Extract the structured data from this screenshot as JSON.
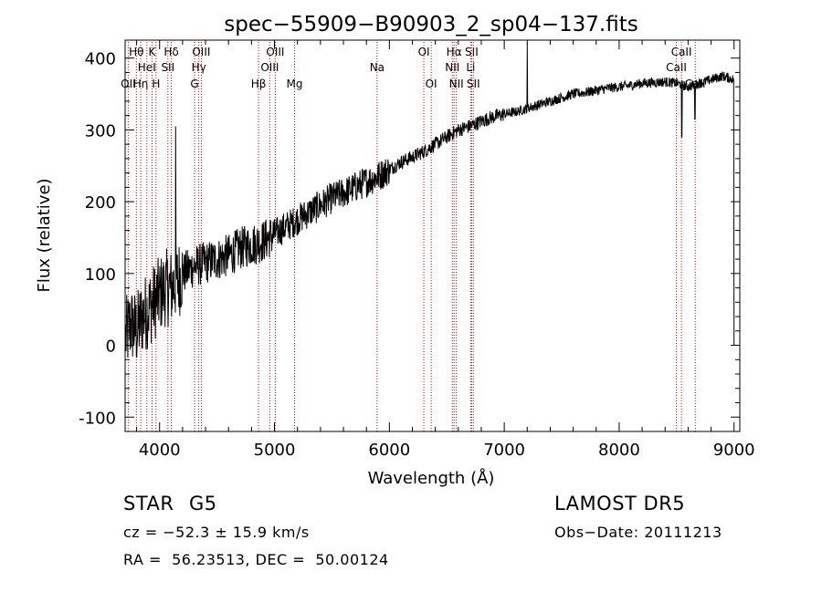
{
  "chart_data": {
    "type": "line",
    "title": "spec−55909−B90903_2_sp04−137.fits",
    "xlabel": "Wavelength (Å)",
    "ylabel": "Flux (relative)",
    "xlim": [
      3700,
      9050
    ],
    "ylim": [
      -120,
      425
    ],
    "x_ticks": [
      4000,
      5000,
      6000,
      7000,
      8000,
      9000
    ],
    "y_ticks": [
      -100,
      0,
      100,
      200,
      300,
      400
    ],
    "grid": false,
    "line_color": "#000000",
    "marker_line_color": "#cc0000",
    "series": [
      {
        "x": [
          3700,
          3750,
          3800,
          3850,
          3900,
          3950,
          4000,
          4050,
          4100,
          4150,
          4200,
          4300,
          4400,
          4500,
          4600,
          4700,
          4800,
          4900,
          5000,
          5100,
          5200,
          5300,
          5400,
          5500,
          5600,
          5700,
          5800,
          5900,
          6000,
          6100,
          6200,
          6300,
          6400,
          6500,
          6600,
          6700,
          6800,
          6900,
          7000,
          7100,
          7200,
          7300,
          7400,
          7500,
          7600,
          7700,
          7800,
          7900,
          8000,
          8100,
          8200,
          8300,
          8400,
          8500,
          8600,
          8700,
          8800,
          8900,
          9000
        ],
        "y": [
          10,
          30,
          20,
          40,
          50,
          60,
          70,
          80,
          80,
          90,
          100,
          110,
          115,
          120,
          125,
          135,
          140,
          145,
          155,
          165,
          175,
          185,
          195,
          205,
          212,
          220,
          228,
          235,
          245,
          255,
          262,
          270,
          280,
          290,
          300,
          305,
          312,
          318,
          322,
          325,
          330,
          335,
          340,
          345,
          350,
          352,
          355,
          358,
          360,
          362,
          365,
          366,
          367,
          365,
          360,
          365,
          370,
          375,
          370
        ]
      }
    ],
    "spikes": [
      {
        "x": 4140,
        "y": 305
      },
      {
        "x": 7200,
        "y": 420
      },
      {
        "x": 8545,
        "y": 290
      },
      {
        "x": 8660,
        "y": 315
      },
      {
        "x": 9000,
        "y": 0
      }
    ],
    "lines": [
      {
        "label": "OII",
        "x": 3727,
        "row": 2
      },
      {
        "label": "Hθ",
        "x": 3798,
        "row": 0
      },
      {
        "label": "Hη",
        "x": 3836,
        "row": 2
      },
      {
        "label": "HeI",
        "x": 3889,
        "row": 1
      },
      {
        "label": "K",
        "x": 3934,
        "row": 0
      },
      {
        "label": "H",
        "x": 3969,
        "row": 2
      },
      {
        "label": "SII",
        "x": 4072,
        "row": 1
      },
      {
        "label": "Hδ",
        "x": 4102,
        "row": 0
      },
      {
        "label": "G",
        "x": 4304,
        "row": 2
      },
      {
        "label": "Hγ",
        "x": 4341,
        "row": 1
      },
      {
        "label": "OIII",
        "x": 4363,
        "row": 0
      },
      {
        "label": "Hβ",
        "x": 4861,
        "row": 2
      },
      {
        "label": "OIII",
        "x": 4959,
        "row": 1
      },
      {
        "label": "OIII",
        "x": 5007,
        "row": 0
      },
      {
        "label": "Mg",
        "x": 5175,
        "row": 2
      },
      {
        "label": "Na",
        "x": 5893,
        "row": 1
      },
      {
        "label": "OI",
        "x": 6300,
        "row": 0
      },
      {
        "label": "OI",
        "x": 6364,
        "row": 2
      },
      {
        "label": "NII",
        "x": 6548,
        "row": 1
      },
      {
        "label": "Hα",
        "x": 6563,
        "row": 0
      },
      {
        "label": "NII",
        "x": 6583,
        "row": 2
      },
      {
        "label": "Li",
        "x": 6708,
        "row": 1
      },
      {
        "label": "SII",
        "x": 6716,
        "row": 0
      },
      {
        "label": "SII",
        "x": 6731,
        "row": 2
      },
      {
        "label": "CaII",
        "x": 8498,
        "row": 1
      },
      {
        "label": "CaII",
        "x": 8542,
        "row": 0
      },
      {
        "label": "CaII",
        "x": 8662,
        "row": 2
      }
    ]
  },
  "info": {
    "class_label": "STAR",
    "subclass_label": "G5",
    "survey": "LAMOST DR5",
    "redshift_text": "cz = −52.3 ± 15.9 km/s",
    "obs_date": "Obs−Date: 20111213",
    "coords": "RA =  56.23513, DEC =  50.00124"
  }
}
